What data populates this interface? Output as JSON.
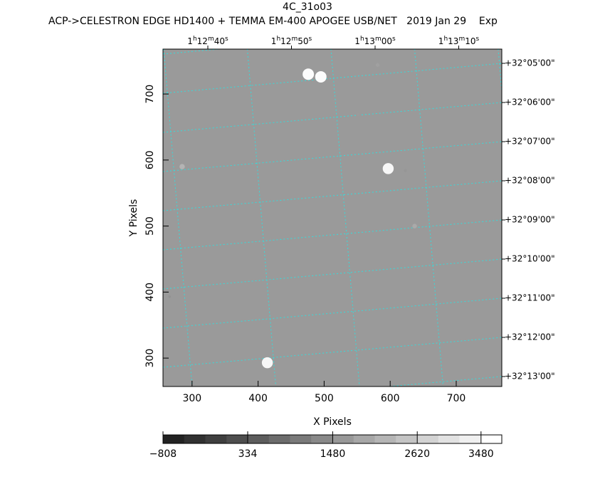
{
  "chart_data": {
    "type": "image",
    "title": "4C_31o03",
    "subtitle": "ACP->CELESTRON EDGE HD1400 + TEMMA EM-400 APOGEE USB/NET   2019 Jan 29    Exp",
    "x_label": "X Pixels",
    "y_label": "Y Pixels",
    "xlim": [
      256,
      769
    ],
    "ylim": [
      257,
      768
    ],
    "xticks": [
      300,
      400,
      500,
      600,
      700
    ],
    "yticks": [
      300,
      400,
      500,
      600,
      700
    ],
    "ra_ticks": [
      "1h12m40s",
      "1h12m50s",
      "1h13m00s",
      "1h13m10s"
    ],
    "dec_ticks": [
      "+32°05'00\"",
      "+32°06'00\"",
      "+32°07'00\"",
      "+32°08'00\"",
      "+32°09'00\"",
      "+32°10'00\"",
      "+32°11'00\"",
      "+32°12'00\"",
      "+32°13'00\""
    ],
    "grid_color": "#33dddd",
    "sources": {
      "x": [
        476,
        495,
        581,
        552,
        285,
        597,
        623,
        637,
        414,
        266
      ],
      "y": [
        730,
        726,
        744,
        669,
        590,
        587,
        584,
        500,
        293,
        393
      ],
      "values": [
        3700,
        3700,
        1800,
        1700,
        2200,
        3600,
        1600,
        2000,
        3600,
        1500
      ]
    },
    "colorbar": {
      "lim": [
        -808,
        3760
      ],
      "ticks": [
        {
          "value": -808,
          "label": "−808"
        },
        334,
        1480,
        2620,
        3480
      ]
    }
  }
}
